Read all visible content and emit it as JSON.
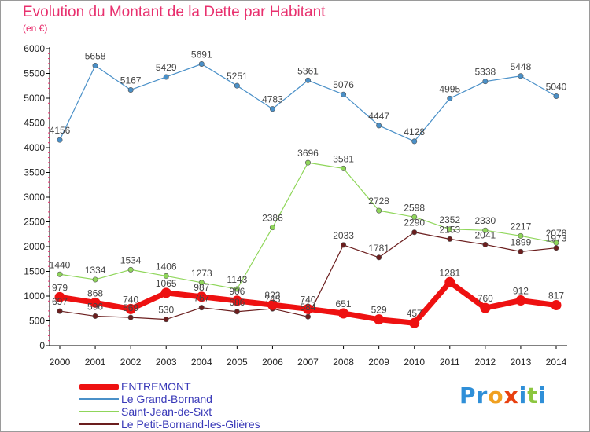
{
  "title": "Evolution du Montant de la Dette par Habitant",
  "subtitle": "(en €)",
  "brand": {
    "text": "Proxiti",
    "letters": [
      "P",
      "r",
      "o",
      "x",
      "i",
      "t",
      "i"
    ],
    "colors": [
      "#2f8fd8",
      "#2f8fd8",
      "#f0a020",
      "#e84010",
      "#2f8fd8",
      "#8cc63f",
      "#2f8fd8"
    ]
  },
  "chart_data": {
    "type": "line",
    "categories": [
      "2000",
      "2001",
      "2002",
      "2003",
      "2004",
      "2005",
      "2006",
      "2007",
      "2008",
      "2009",
      "2010",
      "2011",
      "2012",
      "2013",
      "2014"
    ],
    "ylim": [
      0,
      6000
    ],
    "yticks": [
      "0",
      "500",
      "1000",
      "1500",
      "2000",
      "2500",
      "3000",
      "3500",
      "4000",
      "4500",
      "5000",
      "5500",
      "6000"
    ],
    "grid": false,
    "legend_position": "bottom",
    "series": [
      {
        "name": "Le Grand-Bornand",
        "color": "#4a90c8",
        "values": [
          4156,
          5658,
          5167,
          5429,
          5691,
          5251,
          4783,
          5361,
          5076,
          4447,
          4128,
          4995,
          5338,
          5448,
          5040
        ],
        "labels": [
          "4156",
          "5658",
          "5167",
          "5429",
          "5691",
          "5251",
          "4783",
          "5361",
          "5076",
          "4447",
          "4128",
          "4995",
          "5338",
          "5448",
          "5040"
        ]
      },
      {
        "name": "Saint-Jean-de-Sixt",
        "color": "#8fd65a",
        "values": [
          1440,
          1334,
          1534,
          1406,
          1273,
          1143,
          2386,
          3696,
          3581,
          2728,
          2598,
          2352,
          2330,
          2217,
          2078
        ],
        "labels": [
          "1440",
          "1334",
          "1534",
          "1406",
          "1273",
          "1143",
          "2386",
          "3696",
          "3581",
          "2728",
          "2598",
          "2352",
          "2330",
          "2217",
          "2078"
        ]
      },
      {
        "name": "Le Petit-Bornand-les-Glières",
        "color": "#6b1e1e",
        "values": [
          697,
          596,
          569,
          530,
          767,
          686,
          745,
          584,
          2033,
          1781,
          2290,
          2153,
          2041,
          1899,
          1973
        ],
        "labels": [
          "697",
          "596",
          "569",
          "530",
          "767",
          "686",
          "745",
          "584",
          "2033",
          "1781",
          "2290",
          "2153",
          "2041",
          "1899",
          "1973"
        ]
      },
      {
        "name": "ENTREMONT",
        "color": "#ee1111",
        "values": [
          979,
          868,
          740,
          1065,
          987,
          906,
          823,
          740,
          651,
          529,
          457,
          1281,
          760,
          912,
          817
        ],
        "labels": [
          "979",
          "868",
          "740",
          "1065",
          "987",
          "906",
          "823",
          "740",
          "651",
          "529",
          "457",
          "1281",
          "760",
          "912",
          "817"
        ]
      }
    ]
  },
  "legend": [
    {
      "label": "ENTREMONT",
      "color": "#ee1111",
      "thick": true
    },
    {
      "label": "Le Grand-Bornand",
      "color": "#4a90c8",
      "thick": false
    },
    {
      "label": "Saint-Jean-de-Sixt",
      "color": "#8fd65a",
      "thick": false
    },
    {
      "label": "Le Petit-Bornand-les-Glières",
      "color": "#6b1e1e",
      "thick": false
    }
  ]
}
